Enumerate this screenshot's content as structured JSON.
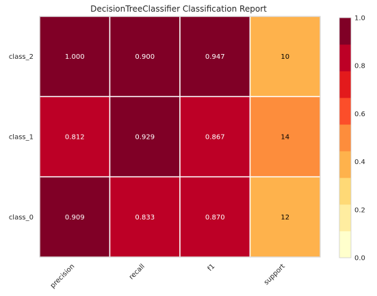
{
  "chart_data": {
    "type": "heatmap",
    "title": "DecisionTreeClassifier Classification Report",
    "columns": [
      "precision",
      "recall",
      "f1",
      "support"
    ],
    "rows": [
      "class_2",
      "class_1",
      "class_0"
    ],
    "values": [
      [
        1.0,
        0.9,
        0.947,
        10
      ],
      [
        0.812,
        0.929,
        0.867,
        14
      ],
      [
        0.909,
        0.833,
        0.87,
        12
      ]
    ],
    "cell_labels": [
      [
        "1.000",
        "0.900",
        "0.947",
        "10"
      ],
      [
        "0.812",
        "0.929",
        "0.867",
        "14"
      ],
      [
        "0.909",
        "0.833",
        "0.870",
        "12"
      ]
    ],
    "support_scale_max": 29,
    "colorbar": {
      "range": [
        0,
        1
      ],
      "ticks": [
        "0.0",
        "0.2",
        "0.4",
        "0.6",
        "0.8",
        "1.0"
      ],
      "colors": [
        "#ffffcc",
        "#ffeda0",
        "#fed976",
        "#feb24c",
        "#fd8d3c",
        "#fc4e2a",
        "#e31a1c",
        "#bd0026",
        "#800026"
      ]
    },
    "xtick_rotation_deg": 45,
    "grid": true,
    "legend": "colorbar-right"
  }
}
